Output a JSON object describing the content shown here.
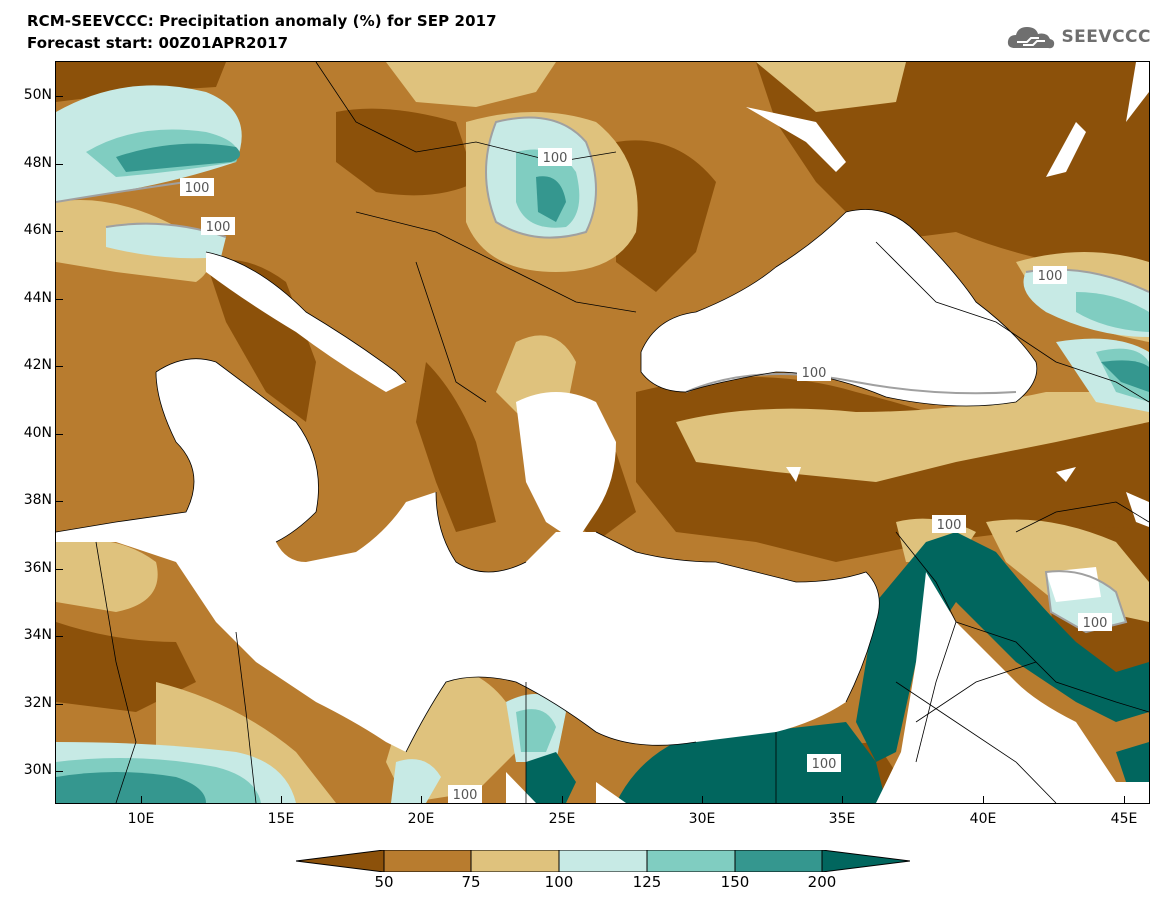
{
  "header": {
    "title_line1": "RCM-SEEVCCC: Precipitation anomaly (%) for SEP 2017",
    "title_line2": "Forecast start: 00Z01APR2017",
    "logo_text": "SEEVCCC",
    "logo_icon": "cloud-icon"
  },
  "map": {
    "variable": "Precipitation anomaly (%)",
    "lat_labels": [
      "50N",
      "48N",
      "46N",
      "44N",
      "42N",
      "40N",
      "38N",
      "36N",
      "34N",
      "32N",
      "30N"
    ],
    "lon_labels": [
      "10E",
      "15E",
      "20E",
      "25E",
      "30E",
      "35E",
      "40E",
      "45E"
    ],
    "contour_label": "100",
    "colors": {
      "below_50": "#8c510a",
      "50_75": "#b87c2f",
      "75_100": "#dfc27d",
      "100_125": "#c7eae5",
      "125_150": "#80cdc1",
      "150_200": "#35978f",
      "above_200": "#01665e",
      "no_data": "#ffffff"
    }
  },
  "colorbar": {
    "labels": [
      "50",
      "75",
      "100",
      "125",
      "150",
      "200"
    ],
    "colors": [
      "#8c510a",
      "#b87c2f",
      "#dfc27d",
      "#c7eae5",
      "#80cdc1",
      "#35978f",
      "#01665e"
    ]
  }
}
